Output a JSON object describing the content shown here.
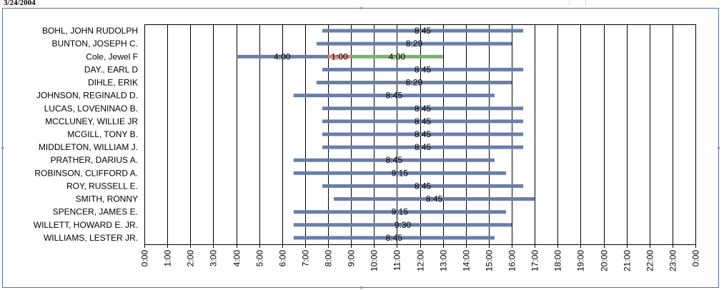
{
  "report": {
    "date": "3/24/2004"
  },
  "colors": {
    "scheduled": "#6a7ea8",
    "segment_red": "#e07f72",
    "segment_green": "#77b56a",
    "grid": "#000000"
  },
  "chart_data": {
    "type": "bar",
    "orientation": "horizontal-range",
    "title": "",
    "xlabel": "",
    "ylabel": "",
    "xlim": [
      "0:00",
      "0:00 (next day)"
    ],
    "grid": true,
    "ticks": [
      "0:00",
      "1:00",
      "2:00",
      "3:00",
      "4:00",
      "5:00",
      "6:00",
      "7:00",
      "8:00",
      "9:00",
      "10:00",
      "11:00",
      "12:00",
      "13:00",
      "14:00",
      "15:00",
      "16:00",
      "17:00",
      "18:00",
      "19:00",
      "20:00",
      "21:00",
      "22:00",
      "23:00",
      "0:00"
    ],
    "rows": [
      {
        "name": "BOHL, JOHN RUDOLPH",
        "segments": [
          {
            "start": "7:45",
            "end": "16:30",
            "color": "scheduled",
            "label": "8:45"
          }
        ]
      },
      {
        "name": "BUNTON, JOSEPH C.",
        "segments": [
          {
            "start": "7:30",
            "end": "16:00",
            "color": "scheduled",
            "label": "8:29"
          }
        ]
      },
      {
        "name": "Cole, Jewel F",
        "segments": [
          {
            "start": "4:00",
            "end": "8:00",
            "color": "scheduled",
            "label": "4:00"
          },
          {
            "start": "8:00",
            "end": "9:00",
            "color": "segment_red",
            "label": "1:00"
          },
          {
            "start": "9:00",
            "end": "13:00",
            "color": "segment_green",
            "label": "4:00"
          }
        ]
      },
      {
        "name": "DAY., EARL D",
        "segments": [
          {
            "start": "7:45",
            "end": "16:30",
            "color": "scheduled",
            "label": "8:45"
          }
        ]
      },
      {
        "name": "DIHLE, ERIK",
        "segments": [
          {
            "start": "7:30",
            "end": "16:00",
            "color": "scheduled",
            "label": "8:29"
          }
        ]
      },
      {
        "name": "JOHNSON, REGINALD D.",
        "segments": [
          {
            "start": "6:30",
            "end": "15:15",
            "color": "scheduled",
            "label": "8:45"
          }
        ]
      },
      {
        "name": "LUCAS, LOVENINAO B.",
        "segments": [
          {
            "start": "7:45",
            "end": "16:30",
            "color": "scheduled",
            "label": "8:45"
          }
        ]
      },
      {
        "name": "MCCLUNEY, WILLIE JR",
        "segments": [
          {
            "start": "7:45",
            "end": "16:30",
            "color": "scheduled",
            "label": "8:45"
          }
        ]
      },
      {
        "name": "MCGILL, TONY B.",
        "segments": [
          {
            "start": "7:45",
            "end": "16:30",
            "color": "scheduled",
            "label": "8:45"
          }
        ]
      },
      {
        "name": "MIDDLETON, WILLIAM J.",
        "segments": [
          {
            "start": "7:45",
            "end": "16:30",
            "color": "scheduled",
            "label": "8:45"
          }
        ]
      },
      {
        "name": "PRATHER, DARIUS A.",
        "segments": [
          {
            "start": "6:30",
            "end": "15:15",
            "color": "scheduled",
            "label": "8:45"
          }
        ]
      },
      {
        "name": "ROBINSON, CLIFFORD A.",
        "segments": [
          {
            "start": "6:30",
            "end": "15:45",
            "color": "scheduled",
            "label": "9:15"
          }
        ]
      },
      {
        "name": "ROY, RUSSELL E.",
        "segments": [
          {
            "start": "7:45",
            "end": "16:30",
            "color": "scheduled",
            "label": "8:45"
          }
        ]
      },
      {
        "name": "SMITH, RONNY",
        "segments": [
          {
            "start": "8:15",
            "end": "17:00",
            "color": "scheduled",
            "label": "8:45"
          }
        ]
      },
      {
        "name": "SPENCER, JAMES E.",
        "segments": [
          {
            "start": "6:30",
            "end": "15:45",
            "color": "scheduled",
            "label": "9:15"
          }
        ]
      },
      {
        "name": "WILLETT, HOWARD E. JR.",
        "segments": [
          {
            "start": "6:30",
            "end": "16:00",
            "color": "scheduled",
            "label": "9:30"
          }
        ]
      },
      {
        "name": "WILLIAMS, LESTER JR.",
        "segments": [
          {
            "start": "6:30",
            "end": "15:15",
            "color": "scheduled",
            "label": "8:45"
          }
        ]
      }
    ]
  }
}
